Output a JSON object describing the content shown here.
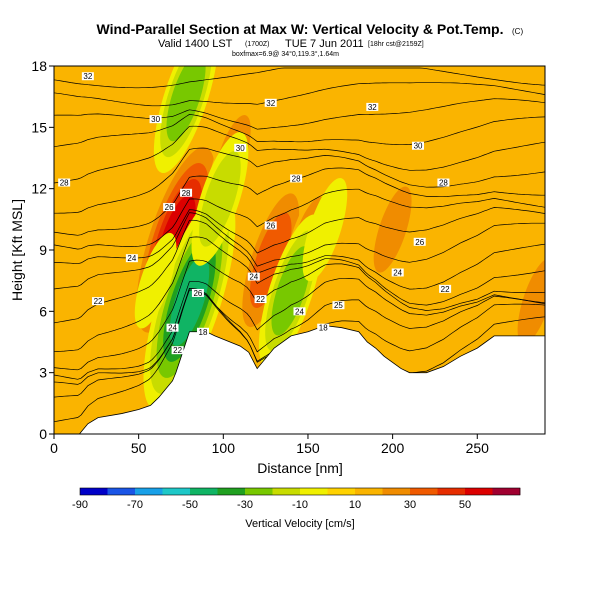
{
  "title": {
    "main": "Wind-Parallel Section at Max W: Vertical Velocity & Pot.Temp.",
    "copyright": "(C)",
    "valid_prefix": "Valid 1400 LST",
    "valid_utc": "(1700Z)",
    "valid_date": "TUE 7 Jun 2011",
    "valid_suffix": "[18hr cst@2159Z]",
    "info_line": "boxfmax=6.9@ 34°0,119.3°,1.64m"
  },
  "colorbar": {
    "label": "Vertical Velocity [cm/s]",
    "ticks": [
      "-90",
      "-70",
      "-50",
      "-30",
      "-10",
      "10",
      "30",
      "50"
    ],
    "colors": [
      "#0000c8",
      "#1a55e6",
      "#18a0e8",
      "#1ec8c8",
      "#10b464",
      "#20a020",
      "#78c800",
      "#c8dc00",
      "#f0f000",
      "#ffd200",
      "#fab400",
      "#f08c00",
      "#f05a00",
      "#e62d00",
      "#dc0000",
      "#a00030"
    ]
  },
  "chart_data": {
    "type": "heatmap",
    "title": "Wind-Parallel Section at Max W: Vertical Velocity & Pot.Temp.",
    "xlabel": "Distance [nm]",
    "ylabel": "Height [Kft MSL]",
    "xlim": [
      0,
      290
    ],
    "ylim": [
      0,
      18
    ],
    "x_ticks": [
      0,
      50,
      100,
      150,
      200,
      250
    ],
    "y_ticks": [
      0,
      3,
      6,
      9,
      12,
      15,
      18
    ],
    "fill_variable": "Vertical Velocity [cm/s]",
    "fill_range": [
      -90,
      60
    ],
    "background_value": 5,
    "terrain_profile": {
      "x": [
        0,
        5,
        10,
        15,
        20,
        26,
        40,
        50,
        57,
        62,
        66,
        70,
        72,
        74,
        76,
        78,
        80,
        84,
        90,
        95,
        110,
        115,
        120,
        130,
        140,
        150,
        160,
        170,
        180,
        185,
        190,
        195,
        200,
        205,
        210,
        215,
        220,
        230,
        240,
        250,
        255,
        260,
        275,
        290
      ],
      "y": [
        0,
        0,
        0,
        0,
        0.5,
        0.8,
        1.0,
        1.2,
        1.4,
        1.8,
        2.2,
        2.6,
        3.0,
        3.5,
        4.0,
        4.5,
        5.0,
        5.0,
        5.0,
        4.8,
        4.3,
        4.0,
        3.2,
        4.2,
        4.8,
        5.0,
        5.3,
        5.2,
        5.0,
        4.5,
        4.2,
        3.8,
        3.5,
        3.2,
        3.0,
        3.0,
        3.0,
        3.3,
        3.8,
        4.2,
        4.5,
        4.8,
        4.8,
        4.8
      ]
    },
    "updrafts": [
      {
        "x": 72,
        "y": 9.5,
        "w": 45
      },
      {
        "x": 75,
        "y": 15.5,
        "w": 20
      },
      {
        "x": 128,
        "y": 8.5,
        "w": 30
      },
      {
        "x": 105,
        "y": 13.5,
        "w": 15
      },
      {
        "x": 150,
        "y": 9.5,
        "w": 15
      },
      {
        "x": 200,
        "y": 10.0,
        "w": 15
      },
      {
        "x": 235,
        "y": 8.5,
        "w": 12
      },
      {
        "x": 285,
        "y": 6.5,
        "w": 15
      },
      {
        "x": 35,
        "y": 8.0,
        "w": 10
      }
    ],
    "downdrafts": [
      {
        "x": 80,
        "y": 6.5,
        "w": -45
      },
      {
        "x": 78,
        "y": 16.5,
        "w": -25
      },
      {
        "x": 98,
        "y": 11.5,
        "w": -20
      },
      {
        "x": 140,
        "y": 7.0,
        "w": -25
      },
      {
        "x": 160,
        "y": 10.0,
        "w": -12
      },
      {
        "x": 60,
        "y": 7.5,
        "w": -10
      }
    ],
    "contour_variable": "Potential Temperature",
    "contour_labels": [
      {
        "text": "32",
        "x": 20,
        "y": 17.5
      },
      {
        "text": "32",
        "x": 128,
        "y": 16.2
      },
      {
        "text": "32",
        "x": 188,
        "y": 16.0
      },
      {
        "text": "30",
        "x": 60,
        "y": 15.4
      },
      {
        "text": "30",
        "x": 110,
        "y": 14.0
      },
      {
        "text": "30",
        "x": 215,
        "y": 14.1
      },
      {
        "text": "28",
        "x": 6,
        "y": 12.3
      },
      {
        "text": "28",
        "x": 78,
        "y": 11.8
      },
      {
        "text": "28",
        "x": 143,
        "y": 12.5
      },
      {
        "text": "28",
        "x": 230,
        "y": 12.3
      },
      {
        "text": "26",
        "x": 68,
        "y": 11.1
      },
      {
        "text": "26",
        "x": 128,
        "y": 10.2
      },
      {
        "text": "26",
        "x": 216,
        "y": 9.4
      },
      {
        "text": "24",
        "x": 46,
        "y": 8.6
      },
      {
        "text": "24",
        "x": 118,
        "y": 7.7
      },
      {
        "text": "24",
        "x": 203,
        "y": 7.9
      },
      {
        "text": "22",
        "x": 26,
        "y": 6.5
      },
      {
        "text": "22",
        "x": 122,
        "y": 6.6
      },
      {
        "text": "22",
        "x": 231,
        "y": 7.1
      },
      {
        "text": "26",
        "x": 85,
        "y": 6.9
      },
      {
        "text": "25",
        "x": 168,
        "y": 6.3
      },
      {
        "text": "24",
        "x": 145,
        "y": 6.0
      },
      {
        "text": "24",
        "x": 70,
        "y": 5.2
      },
      {
        "text": "22",
        "x": 73,
        "y": 4.1
      },
      {
        "text": "18",
        "x": 88,
        "y": 5.0
      },
      {
        "text": "18",
        "x": 159,
        "y": 5.2
      }
    ],
    "contour_levels": [
      18,
      20,
      22,
      24,
      25,
      26,
      28,
      30,
      32
    ]
  }
}
